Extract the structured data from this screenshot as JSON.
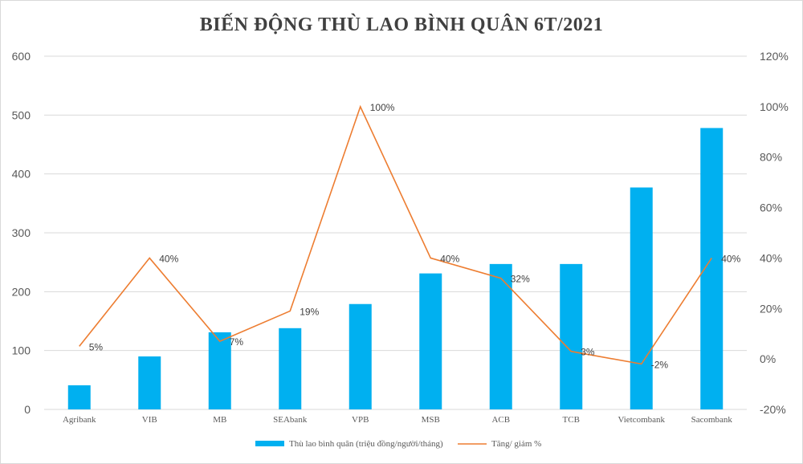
{
  "chart_data": {
    "type": "bar",
    "title": "BIẾN ĐỘNG THÙ LAO BÌNH QUÂN 6T/2021",
    "categories": [
      "Agribank",
      "VIB",
      "MB",
      "SEAbank",
      "VPB",
      "MSB",
      "ACB",
      "TCB",
      "Vietcombank",
      "Sacombank"
    ],
    "series": [
      {
        "name": "Thù lao bình quân (triệu đồng/người/tháng)",
        "type": "bar",
        "axis": "left",
        "color": "#00b0f0",
        "values": [
          41,
          90,
          131,
          138,
          179,
          231,
          247,
          247,
          377,
          478
        ]
      },
      {
        "name": "Tăng/ giảm %",
        "type": "line",
        "axis": "right",
        "color": "#ed7d31",
        "values": [
          5,
          40,
          7,
          19,
          100,
          40,
          32,
          3,
          -2,
          40
        ],
        "labels": [
          "5%",
          "40%",
          "7%",
          "19%",
          "100%",
          "40%",
          "32%",
          "3%",
          "-2%",
          "40%"
        ]
      }
    ],
    "y_left": {
      "ylim": [
        0,
        600
      ],
      "ticks": [
        "0",
        "100",
        "200",
        "300",
        "400",
        "500",
        "600"
      ]
    },
    "y_right": {
      "ylim": [
        -20,
        120
      ],
      "ticks": [
        "-20%",
        "0%",
        "20%",
        "40%",
        "60%",
        "80%",
        "100%",
        "120%"
      ]
    },
    "grid": true,
    "legend_position": "bottom"
  }
}
